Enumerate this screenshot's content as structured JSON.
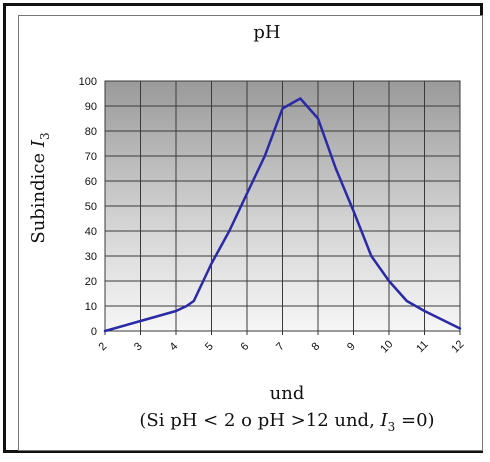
{
  "chart_data": {
    "type": "line",
    "title": "pH",
    "ylabel": "Subindice I3",
    "ylabel_main": "Subindice ",
    "ylabel_var": "I",
    "ylabel_sub": "3",
    "xlabel": "und",
    "note_prefix": "(Si pH < 2 o pH >12 und, ",
    "note_var": "I",
    "note_sub": "3",
    "note_suffix": " =0)",
    "ylim": [
      0,
      100
    ],
    "xlim": [
      2,
      12
    ],
    "y_ticks": [
      0,
      10,
      20,
      30,
      40,
      50,
      60,
      70,
      80,
      90,
      100
    ],
    "x_ticks": [
      "2",
      "3",
      "4",
      "5",
      "6",
      "7",
      "8",
      "9",
      "10",
      "11",
      "12"
    ],
    "grid": true,
    "line_color": "#2a2aa8",
    "series": [
      {
        "x": [
          2,
          3,
          3.5,
          4,
          4.3,
          4.5,
          5,
          5.5,
          6,
          6.5,
          7,
          7.5,
          8,
          8.5,
          9,
          9.5,
          10,
          10.5,
          11,
          12
        ],
        "y": [
          0,
          4,
          6,
          8,
          10,
          12,
          27,
          40,
          55,
          70,
          89,
          93,
          85,
          65,
          48,
          30,
          20,
          12,
          8,
          1
        ]
      }
    ]
  }
}
